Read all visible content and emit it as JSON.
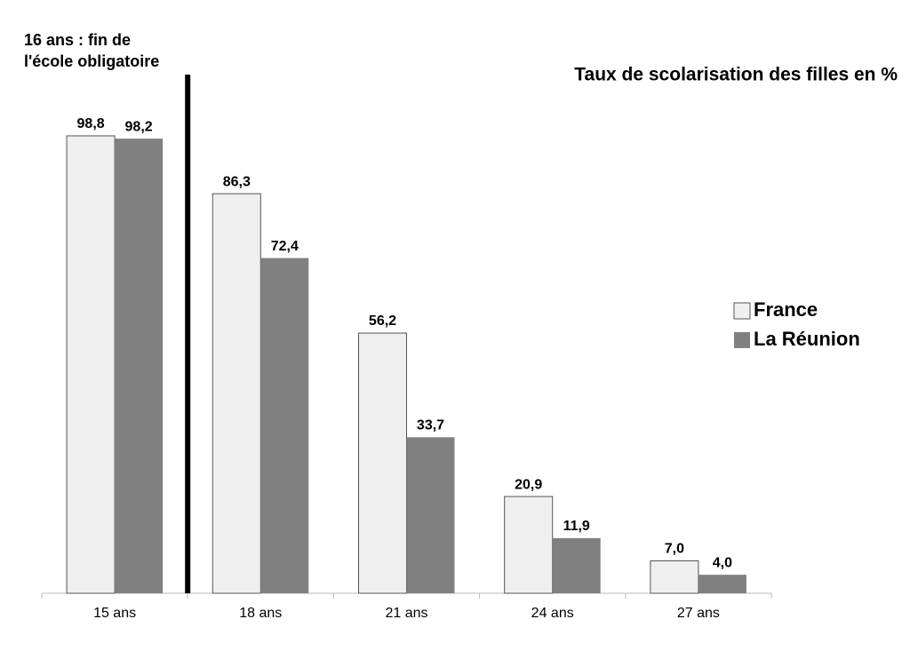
{
  "chart_data": {
    "type": "bar",
    "title": "Taux de scolarisation des filles en %",
    "annotation": [
      "16 ans : fin de",
      "l'école obligatoire"
    ],
    "categories": [
      "15 ans",
      "18 ans",
      "21 ans",
      "24 ans",
      "27 ans"
    ],
    "series": [
      {
        "name": "France",
        "color": "#efefef",
        "values": [
          98.8,
          86.3,
          56.2,
          20.9,
          7.0
        ],
        "value_labels": [
          "98,8",
          "86,3",
          "56,2",
          "20,9",
          "7,0"
        ]
      },
      {
        "name": "La Réunion",
        "color": "#808080",
        "values": [
          98.2,
          72.4,
          33.7,
          11.9,
          4.0
        ],
        "value_labels": [
          "98,2",
          "72,4",
          "33,7",
          "11,9",
          "4,0"
        ]
      }
    ],
    "legend": "right"
  }
}
